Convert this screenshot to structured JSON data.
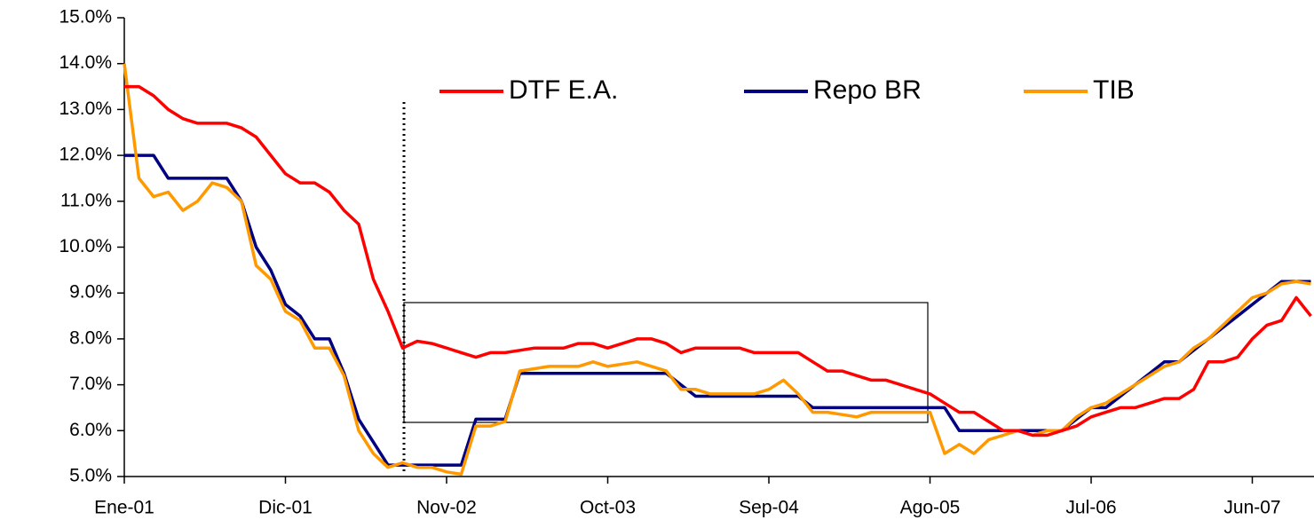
{
  "chart_data": {
    "type": "line",
    "categories": [
      "Ene-01",
      null,
      null,
      null,
      null,
      null,
      null,
      null,
      null,
      null,
      null,
      "Dic-01",
      null,
      null,
      null,
      null,
      null,
      null,
      null,
      null,
      null,
      null,
      "Nov-02",
      null,
      null,
      null,
      null,
      null,
      null,
      null,
      null,
      null,
      null,
      "Oct-03",
      null,
      null,
      null,
      null,
      null,
      null,
      null,
      null,
      null,
      null,
      "Sep-04",
      null,
      null,
      null,
      null,
      null,
      null,
      null,
      null,
      null,
      null,
      "Ago-05",
      null,
      null,
      null,
      null,
      null,
      null,
      null,
      null,
      null,
      null,
      "Jul-06",
      null,
      null,
      null,
      null,
      null,
      null,
      null,
      null,
      null,
      null,
      "Jun-07",
      null,
      null,
      null,
      null
    ],
    "series": [
      {
        "name": "DTF E.A.",
        "color": "#ff0000",
        "values": [
          13.5,
          13.5,
          13.3,
          13.0,
          12.8,
          12.7,
          12.7,
          12.7,
          12.6,
          12.4,
          12.0,
          11.6,
          11.4,
          11.4,
          11.2,
          10.8,
          10.5,
          9.3,
          8.6,
          7.8,
          7.95,
          7.9,
          7.8,
          7.7,
          7.6,
          7.7,
          7.7,
          7.75,
          7.8,
          7.8,
          7.8,
          7.9,
          7.9,
          7.8,
          7.9,
          8.0,
          8.0,
          7.9,
          7.7,
          7.8,
          7.8,
          7.8,
          7.8,
          7.7,
          7.7,
          7.7,
          7.7,
          7.5,
          7.3,
          7.3,
          7.2,
          7.1,
          7.1,
          7.0,
          6.9,
          6.8,
          6.6,
          6.4,
          6.4,
          6.2,
          6.0,
          6.0,
          5.9,
          5.9,
          6.0,
          6.1,
          6.3,
          6.4,
          6.5,
          6.5,
          6.6,
          6.7,
          6.7,
          6.9,
          7.5,
          7.5,
          7.6,
          8.0,
          8.3,
          8.4,
          8.9,
          8.5
        ]
      },
      {
        "name": "Repo BR",
        "color": "#000080",
        "values": [
          12,
          12,
          12,
          11.5,
          11.5,
          11.5,
          11.5,
          11.5,
          11,
          10,
          9.5,
          8.75,
          8.5,
          8,
          8,
          7.25,
          6.25,
          5.75,
          5.25,
          5.25,
          5.25,
          5.25,
          5.25,
          5.25,
          6.25,
          6.25,
          6.25,
          7.25,
          7.25,
          7.25,
          7.25,
          7.25,
          7.25,
          7.25,
          7.25,
          7.25,
          7.25,
          7.25,
          7,
          6.75,
          6.75,
          6.75,
          6.75,
          6.75,
          6.75,
          6.75,
          6.75,
          6.5,
          6.5,
          6.5,
          6.5,
          6.5,
          6.5,
          6.5,
          6.5,
          6.5,
          6.5,
          6,
          6,
          6,
          6,
          6,
          6,
          6,
          6,
          6.25,
          6.5,
          6.5,
          6.75,
          7,
          7.25,
          7.5,
          7.5,
          7.75,
          8,
          8.25,
          8.5,
          8.75,
          9,
          9.25,
          9.25,
          9.25
        ]
      },
      {
        "name": "TIB",
        "color": "#ff9900",
        "values": [
          14.0,
          11.5,
          11.1,
          11.2,
          10.8,
          11.0,
          11.4,
          11.3,
          11.0,
          9.6,
          9.3,
          8.6,
          8.4,
          7.8,
          7.8,
          7.2,
          6.0,
          5.5,
          5.2,
          5.3,
          5.2,
          5.2,
          5.1,
          5.05,
          6.1,
          6.1,
          6.2,
          7.3,
          7.35,
          7.4,
          7.4,
          7.4,
          7.5,
          7.4,
          7.45,
          7.5,
          7.4,
          7.3,
          6.9,
          6.9,
          6.8,
          6.8,
          6.8,
          6.8,
          6.9,
          7.1,
          6.8,
          6.4,
          6.4,
          6.35,
          6.3,
          6.4,
          6.4,
          6.4,
          6.4,
          6.4,
          5.5,
          5.7,
          5.5,
          5.8,
          5.9,
          6.0,
          5.9,
          6.0,
          6.0,
          6.3,
          6.5,
          6.6,
          6.8,
          7.0,
          7.2,
          7.4,
          7.5,
          7.8,
          8.0,
          8.3,
          8.6,
          8.9,
          9.0,
          9.2,
          9.25,
          9.2
        ]
      }
    ],
    "ylim": [
      5,
      15
    ],
    "yticks": [
      {
        "value": 5,
        "label": "5.0%"
      },
      {
        "value": 6,
        "label": "6.0%"
      },
      {
        "value": 7,
        "label": "7.0%"
      },
      {
        "value": 8,
        "label": "8.0%"
      },
      {
        "value": 9,
        "label": "9.0%"
      },
      {
        "value": 10,
        "label": "10.0%"
      },
      {
        "value": 11,
        "label": "11.0%"
      },
      {
        "value": 12,
        "label": "12.0%"
      },
      {
        "value": 13,
        "label": "13.0%"
      },
      {
        "value": 14,
        "label": "14.0%"
      },
      {
        "value": 15,
        "label": "15.0%"
      }
    ],
    "grid": false,
    "legend": "top"
  }
}
